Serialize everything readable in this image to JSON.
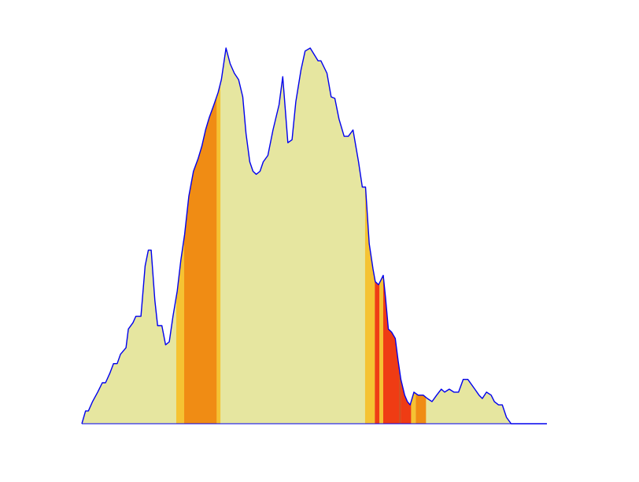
{
  "chart_data": {
    "type": "area",
    "title": "",
    "xlabel": "",
    "ylabel": "",
    "axes_visible": false,
    "grid": false,
    "xlim": [
      0,
      100
    ],
    "ylim": [
      0,
      100
    ],
    "line_color": "#0000ee",
    "fill_color": "#e6e6a0",
    "series": [
      {
        "x": [
          0,
          0.8,
          1.4,
          2.3,
          3.4,
          4.4,
          5.1,
          6.0,
          6.8,
          7.6,
          8.3,
          9.5,
          10.0,
          11.0,
          11.6,
          12.7,
          13.6,
          14.3,
          14.9,
          15.7,
          16.3,
          17.2,
          18.0,
          18.8,
          19.6,
          20.5,
          21.3,
          22.1,
          23.0,
          24.0,
          25.0,
          25.8,
          26.6,
          27.4,
          28.4,
          29.3,
          30.0,
          31.0,
          31.9,
          32.8,
          33.7,
          34.6,
          35.3,
          36.1,
          36.8,
          37.5,
          38.3,
          39.0,
          40.0,
          41.1,
          42.4,
          43.2,
          44.3,
          45.2,
          46.0,
          47.1,
          48.0,
          49.1,
          50.8,
          51.4,
          52.7,
          53.6,
          54.4,
          55.3,
          56.4,
          57.3,
          58.3,
          59.5,
          60.3,
          61.0,
          61.8,
          62.6,
          63.1,
          63.8,
          64.8,
          65.3,
          65.9,
          66.6,
          67.4,
          68.0,
          68.6,
          69.4,
          70.0,
          70.6,
          71.4,
          72.3,
          73.4,
          74.3,
          75.3,
          76.3,
          77.3,
          78.0,
          79.0,
          80.0,
          81.0,
          82.0,
          83.0,
          84.5,
          85.4,
          86.1,
          87.0,
          88.0,
          88.7,
          89.6,
          90.4,
          91.3,
          92.3,
          93.1,
          94.2,
          95.0,
          96.3,
          97.6,
          100.0
        ],
        "y": [
          0,
          3.4,
          3.4,
          5.9,
          8.4,
          10.9,
          10.9,
          13.4,
          16.0,
          16.0,
          18.5,
          20.2,
          25.2,
          26.9,
          28.6,
          28.6,
          42.0,
          46.2,
          46.2,
          32.8,
          26.1,
          26.1,
          21.0,
          21.8,
          28.6,
          35.3,
          43.7,
          50.4,
          60.5,
          67.2,
          70.6,
          73.9,
          78.2,
          81.5,
          84.9,
          88.2,
          91.6,
          100.0,
          95.8,
          93.3,
          91.6,
          87.0,
          77.3,
          69.7,
          67.2,
          66.4,
          67.2,
          69.7,
          71.4,
          78.2,
          84.9,
          92.4,
          74.8,
          75.6,
          85.7,
          94.1,
          99.2,
          100.0,
          96.6,
          96.6,
          93.3,
          87.0,
          86.6,
          81.1,
          76.5,
          76.5,
          78.2,
          69.7,
          63.0,
          63.0,
          47.9,
          41.2,
          37.8,
          37.0,
          39.5,
          33.6,
          25.2,
          24.4,
          22.7,
          16.8,
          11.8,
          7.6,
          5.9,
          5.0,
          8.4,
          7.6,
          7.6,
          6.7,
          5.9,
          7.6,
          9.2,
          8.4,
          9.2,
          8.4,
          8.4,
          11.8,
          11.8,
          9.2,
          7.6,
          6.7,
          8.4,
          7.6,
          5.9,
          5.0,
          5.0,
          1.7,
          0,
          0,
          0,
          0,
          0,
          0,
          0
        ],
        "bands": [
          {
            "from": 20.3,
            "to": 22.0,
            "color": "#f5c333"
          },
          {
            "from": 22.0,
            "to": 29.0,
            "color": "#f08c14"
          },
          {
            "from": 29.0,
            "to": 29.8,
            "color": "#f5c333"
          },
          {
            "from": 60.9,
            "to": 63.0,
            "color": "#f5c333"
          },
          {
            "from": 63.0,
            "to": 64.0,
            "color": "#ef3c14"
          },
          {
            "from": 64.0,
            "to": 64.8,
            "color": "#f5c333"
          },
          {
            "from": 64.8,
            "to": 68.2,
            "color": "#ef3c14"
          },
          {
            "from": 68.2,
            "to": 68.6,
            "color": "#d24a1e"
          },
          {
            "from": 68.6,
            "to": 70.8,
            "color": "#ef3c14"
          },
          {
            "from": 70.8,
            "to": 71.8,
            "color": "#f5c333"
          },
          {
            "from": 71.8,
            "to": 74.0,
            "color": "#f08c14"
          }
        ]
      }
    ]
  }
}
